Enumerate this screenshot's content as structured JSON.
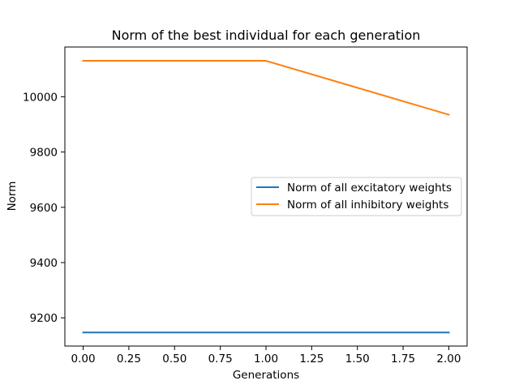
{
  "chart_data": {
    "type": "line",
    "title": "Norm of the best individual for each generation",
    "xlabel": "Generations",
    "ylabel": "Norm",
    "x": [
      0,
      1,
      2
    ],
    "series": [
      {
        "name": "Norm of all excitatory weights",
        "values": [
          9147,
          9147,
          9147
        ],
        "color": "#1f77b4"
      },
      {
        "name": "Norm of all inhibitory weights",
        "values": [
          10130,
          10130,
          9935
        ],
        "color": "#ff7f0e"
      }
    ],
    "xlim": [
      -0.1,
      2.1
    ],
    "ylim": [
      9098,
      10180
    ],
    "xticks": [
      0.0,
      0.25,
      0.5,
      0.75,
      1.0,
      1.25,
      1.5,
      1.75,
      2.0
    ],
    "xtick_labels": [
      "0.00",
      "0.25",
      "0.50",
      "0.75",
      "1.00",
      "1.25",
      "1.50",
      "1.75",
      "2.00"
    ],
    "yticks": [
      9200,
      9400,
      9600,
      9800,
      10000
    ],
    "ytick_labels": [
      "9200",
      "9400",
      "9600",
      "9800",
      "10000"
    ],
    "grid": false,
    "legend_position": "center-right"
  }
}
